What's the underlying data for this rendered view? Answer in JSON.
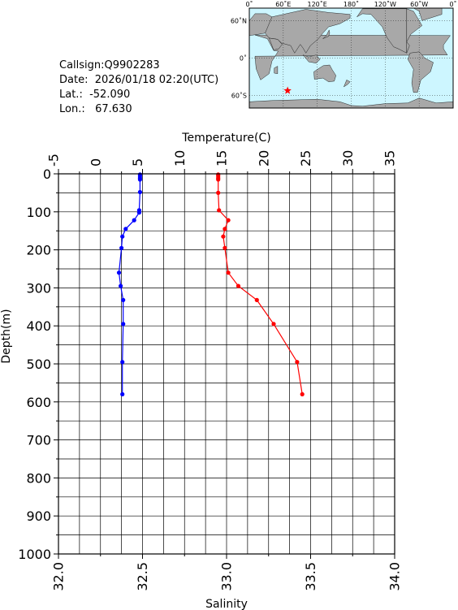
{
  "info": {
    "callsign": "Callsign:Q9902283",
    "date": "Date:  2026/01/18 02:20(UTC)",
    "lat": "Lat.:  -52.090",
    "lon": "Lon.:   67.630"
  },
  "map": {
    "top_labels": [
      "0˚",
      "60˚E",
      "120˚E",
      "180˚",
      "120˚W",
      "60˚W",
      "0˚"
    ],
    "lat_labels": [
      "60˚N",
      "0˚",
      "60˚S"
    ],
    "ocean_color": "#cdf6ff",
    "land_color": "#a8a8a8",
    "station": {
      "lat": -52.09,
      "lon": 67.63,
      "color": "#ff0000",
      "marker": "star"
    }
  },
  "chart_data": {
    "type": "line",
    "xlabel_top": "Temperature(C)",
    "xlabel_bottom": "Salinity",
    "ylabel": "Depth(m)",
    "ylim": [
      0,
      1000
    ],
    "y_ticks": [
      0,
      100,
      200,
      300,
      400,
      500,
      600,
      700,
      800,
      900,
      1000
    ],
    "temperature_lim": [
      -5,
      35
    ],
    "temperature_ticks": [
      -5,
      0,
      5,
      10,
      15,
      20,
      25,
      30,
      35
    ],
    "salinity_lim": [
      32.0,
      34.0
    ],
    "salinity_ticks": [
      "32.0",
      "32.5",
      "33.0",
      "33.5",
      "34.0"
    ],
    "grid": true,
    "series": [
      {
        "variable": "temperature",
        "color": "#0000ff",
        "depth": [
          2,
          6,
          11,
          15,
          48,
          96,
          102,
          122,
          145,
          165,
          195,
          260,
          295,
          332,
          395,
          495,
          580
        ],
        "values": [
          4.7,
          4.7,
          4.7,
          4.7,
          4.7,
          4.6,
          4.6,
          4.0,
          3.0,
          2.6,
          2.5,
          2.2,
          2.4,
          2.7,
          2.7,
          2.6,
          2.6
        ]
      },
      {
        "variable": "salinity",
        "color": "#ff0000",
        "depth": [
          2,
          6,
          11,
          15,
          50,
          96,
          122,
          145,
          165,
          195,
          260,
          295,
          332,
          395,
          495,
          580
        ],
        "values": [
          32.95,
          32.95,
          32.95,
          32.95,
          32.95,
          32.955,
          33.01,
          32.99,
          32.98,
          32.99,
          33.01,
          33.07,
          33.18,
          33.28,
          33.42,
          33.45
        ]
      }
    ]
  }
}
